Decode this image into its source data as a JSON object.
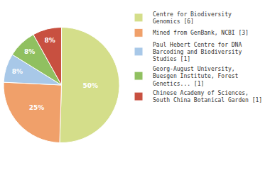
{
  "chart_data": {
    "type": "pie",
    "categories": [
      "Centre for Biodiversity\nGenomics [6]",
      "Mined from GenBank, NCBI [3]",
      "Paul Hebert Centre for DNA\nBarcoding and Biodiversity\nStudies [1]",
      "Georg-August University,\nBuesgen Institute, Forest\nGenetics... [1]",
      "Chinese Academy of Sciences,\nSouth China Botanical Garden [1]"
    ],
    "values": [
      50,
      25,
      8,
      8,
      8
    ],
    "value_labels": [
      "50%",
      "25%",
      "8%",
      "8%",
      "8%"
    ],
    "colors": [
      "#d4de8a",
      "#f0a06a",
      "#a8c8e8",
      "#90c060",
      "#c85040"
    ],
    "data_labels": true,
    "legend": "upper right"
  }
}
